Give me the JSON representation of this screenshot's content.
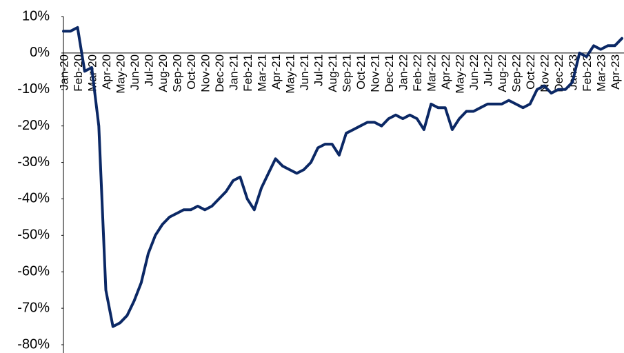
{
  "chart_data": {
    "type": "line",
    "categories": [
      "Jan-20",
      null,
      "Feb-20",
      null,
      "Mar-20",
      null,
      "Apr-20",
      null,
      "May-20",
      null,
      "Jun-20",
      null,
      "Jul-20",
      null,
      "Aug-20",
      null,
      "Sep-20",
      null,
      "Oct-20",
      null,
      "Nov-20",
      null,
      "Dec-20",
      null,
      "Jan-21",
      null,
      "Feb-21",
      null,
      "Mar-21",
      null,
      "Apr-21",
      null,
      "May-21",
      null,
      "Jun-21",
      null,
      "Jul-21",
      null,
      "Aug-21",
      null,
      "Sep-21",
      null,
      "Oct-21",
      null,
      "Nov-21",
      null,
      "Dec-21",
      null,
      "Jan-22",
      null,
      "Feb-22",
      null,
      "Mar-22",
      null,
      "Apr-22",
      null,
      "May-22",
      null,
      "Jun-22",
      null,
      "Jul-22",
      null,
      "Aug-22",
      null,
      "Sep-22",
      null,
      "Oct-22",
      null,
      "Nov-22",
      null,
      "Dec-22",
      null,
      "Jan-23",
      null,
      "Feb-23",
      null,
      "Mar-23",
      null,
      "Apr-23",
      null
    ],
    "values": [
      6,
      6,
      7,
      -5,
      -4,
      -20,
      -65,
      -75,
      -74,
      -72,
      -68,
      -63,
      -55,
      -50,
      -47,
      -45,
      -44,
      -43,
      -43,
      -42,
      -43,
      -42,
      -40,
      -38,
      -35,
      -34,
      -40,
      -43,
      -37,
      -33,
      -29,
      -31,
      -32,
      -33,
      -32,
      -30,
      -26,
      -25,
      -25,
      -28,
      -22,
      -21,
      -20,
      -19,
      -19,
      -20,
      -18,
      -17,
      -18,
      -17,
      -18,
      -21,
      -14,
      -15,
      -15,
      -21,
      -18,
      -16,
      -16,
      -15,
      -14,
      -14,
      -14,
      -13,
      -14,
      -15,
      -14,
      -10,
      -9,
      -11,
      -10,
      -10,
      -8,
      0,
      -1,
      2,
      1,
      2,
      2,
      4
    ],
    "color": "#0b2865",
    "ylim": [
      -80,
      10
    ],
    "yticks": [
      {
        "value": 10,
        "label": "10%"
      },
      {
        "value": 0,
        "label": "0%"
      },
      {
        "value": -10,
        "label": "-10%"
      },
      {
        "value": -20,
        "label": "-20%"
      },
      {
        "value": -30,
        "label": "-30%"
      },
      {
        "value": -40,
        "label": "-40%"
      },
      {
        "value": -50,
        "label": "-50%"
      },
      {
        "value": -60,
        "label": "-60%"
      },
      {
        "value": -70,
        "label": "-70%"
      },
      {
        "value": -80,
        "label": "-80%"
      }
    ]
  }
}
